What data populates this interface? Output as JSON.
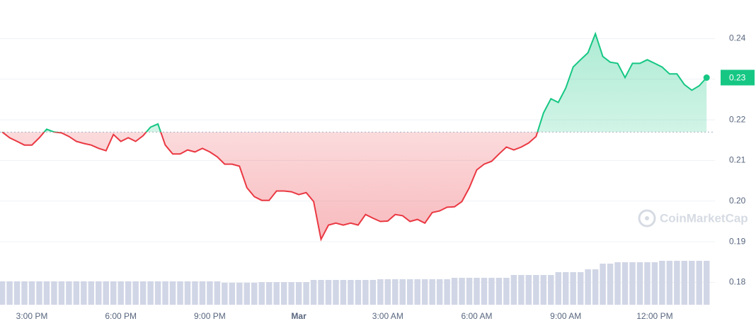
{
  "chart_data": {
    "type": "line",
    "categories": [
      null,
      null,
      null,
      null,
      "3:00 PM",
      null,
      null,
      null,
      null,
      null,
      null,
      null,
      null,
      null,
      null,
      null,
      "6:00 PM",
      null,
      null,
      null,
      null,
      null,
      null,
      null,
      null,
      null,
      null,
      null,
      "9:00 PM",
      null,
      null,
      null,
      null,
      null,
      null,
      null,
      null,
      null,
      null,
      null,
      "Mar",
      null,
      null,
      null,
      null,
      null,
      null,
      null,
      null,
      null,
      null,
      null,
      "3:00 AM",
      null,
      null,
      null,
      null,
      null,
      null,
      null,
      null,
      null,
      null,
      null,
      "6:00 AM",
      null,
      null,
      null,
      null,
      null,
      null,
      null,
      null,
      null,
      null,
      null,
      "9:00 AM",
      null,
      null,
      null,
      null,
      null,
      null,
      null,
      null,
      null,
      null,
      null,
      "12:00 PM",
      null,
      null,
      null,
      null,
      null,
      null,
      null
    ],
    "series": [
      {
        "values": [
          0.217,
          0.2156,
          0.2147,
          0.2138,
          0.2138,
          0.2156,
          0.2177,
          0.217,
          0.2168,
          0.2159,
          0.2147,
          0.2142,
          0.2138,
          0.213,
          0.2124,
          0.2164,
          0.2147,
          0.2156,
          0.2147,
          0.2161,
          0.2182,
          0.219,
          0.2138,
          0.2116,
          0.2116,
          0.2126,
          0.2121,
          0.213,
          0.2121,
          0.2109,
          0.2091,
          0.2091,
          0.2086,
          0.2033,
          0.2011,
          0.2002,
          0.2002,
          0.2025,
          0.2025,
          0.2023,
          0.2016,
          0.2021,
          0.1999,
          0.1906,
          0.1941,
          0.1946,
          0.1941,
          0.1946,
          0.1941,
          0.1967,
          0.1958,
          0.195,
          0.1951,
          0.1967,
          0.1964,
          0.195,
          0.1955,
          0.1946,
          0.1972,
          0.1976,
          0.1985,
          0.1986,
          0.1999,
          0.2033,
          0.2077,
          0.2091,
          0.2098,
          0.2116,
          0.2133,
          0.2126,
          0.2133,
          0.2143,
          0.2159,
          0.2217,
          0.2252,
          0.2243,
          0.2278,
          0.233,
          0.2348,
          0.2365,
          0.2412,
          0.2356,
          0.2342,
          0.2339,
          0.2304,
          0.2339,
          0.2339,
          0.2348,
          0.2339,
          0.233,
          0.2313,
          0.2313,
          0.2287,
          0.2273,
          0.2284,
          0.2304
        ]
      }
    ],
    "baseline": 0.217,
    "up_color": "#16c784",
    "down_color": "#ea3943",
    "ylim": [
      0.1745,
      0.2495
    ],
    "yticks": [
      0.18,
      0.19,
      {
        "value": 0.2,
        "label": "0.20"
      },
      0.21,
      0.22,
      0.23,
      0.24
    ],
    "grid": true,
    "current_label": "0.23",
    "volume": [
      33,
      33,
      33,
      33,
      33,
      33,
      33,
      33,
      33,
      33,
      33,
      33,
      33,
      33,
      33,
      33,
      33,
      33,
      33,
      33,
      33,
      33,
      33,
      33,
      33,
      33,
      33,
      33,
      33,
      33,
      31,
      31,
      31,
      31,
      31,
      32,
      32,
      32,
      32,
      32,
      32,
      32,
      35,
      35,
      35,
      35,
      35,
      35,
      35,
      35,
      35,
      36,
      36,
      36,
      36,
      36,
      36,
      36,
      36,
      36,
      36,
      38,
      38,
      38,
      38,
      38,
      38,
      38,
      38,
      42,
      42,
      42,
      42,
      42,
      42,
      46,
      46,
      46,
      46,
      50,
      50,
      58,
      58,
      60,
      60,
      60,
      60,
      60,
      60,
      62,
      62,
      62,
      62,
      62,
      62,
      62
    ],
    "volume_lim": [
      0,
      100
    ],
    "volume_color": "#d1d6e6",
    "watermark": "CoinMarketCap"
  }
}
